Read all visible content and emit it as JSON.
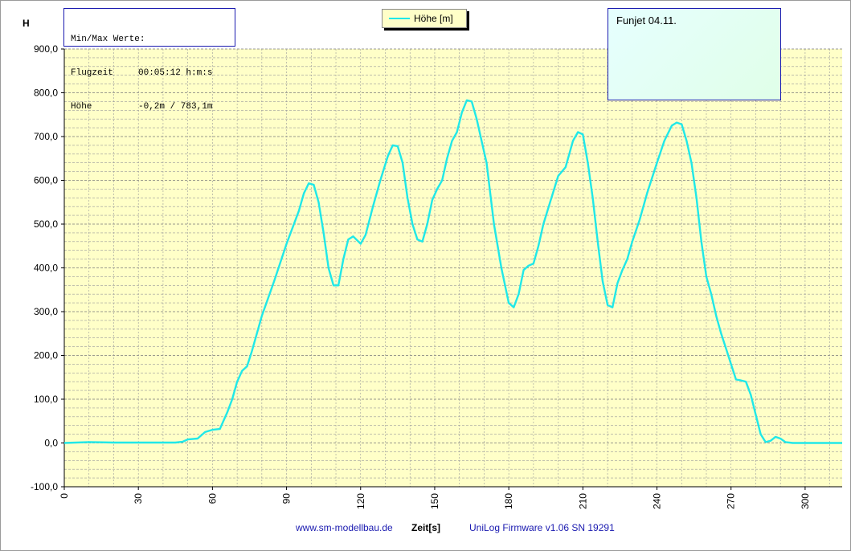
{
  "chart_data": {
    "type": "line",
    "title": "",
    "xlabel": "Zeit[s]",
    "ylabel": "H",
    "xlim": [
      0,
      315
    ],
    "ylim": [
      -100,
      900
    ],
    "x_ticks": [
      0,
      30,
      60,
      90,
      120,
      150,
      180,
      210,
      240,
      270,
      300
    ],
    "y_ticks": [
      -100,
      0,
      100,
      200,
      300,
      400,
      500,
      600,
      700,
      800,
      900
    ],
    "y_tick_labels": [
      "-100,0",
      "0,0",
      "100,0",
      "200,0",
      "300,0",
      "400,0",
      "500,0",
      "600,0",
      "700,0",
      "800,0",
      "900,0"
    ],
    "grid": true,
    "legend_position": "top-center",
    "series": [
      {
        "name": "Höhe [m]",
        "color": "#20e8e8",
        "x": [
          0,
          10,
          20,
          30,
          40,
          45,
          48,
          50,
          54,
          57,
          60,
          63,
          66,
          68,
          70,
          72,
          74,
          76,
          80,
          85,
          90,
          95,
          97,
          99,
          101,
          103,
          105,
          107,
          109,
          111,
          113,
          115,
          117,
          120,
          122,
          125,
          128,
          131,
          133,
          135,
          137,
          139,
          141,
          143,
          145,
          147,
          149,
          151,
          153,
          155,
          157,
          159,
          161,
          163,
          165,
          167,
          169,
          171,
          174,
          177,
          180,
          182,
          184,
          186,
          188,
          190,
          192,
          194,
          197,
          200,
          203,
          206,
          208,
          210,
          212,
          214,
          216,
          218,
          220,
          222,
          224,
          226,
          228,
          230,
          233,
          236,
          240,
          243,
          246,
          248,
          250,
          252,
          254,
          256,
          258,
          260,
          262,
          264,
          266,
          268,
          270,
          272,
          274,
          276,
          278,
          280,
          282,
          284,
          286,
          288,
          290,
          292,
          295,
          300,
          310,
          315
        ],
        "y": [
          0,
          2,
          1,
          1,
          1,
          1,
          3,
          8,
          10,
          25,
          30,
          32,
          70,
          100,
          140,
          165,
          175,
          210,
          290,
          370,
          455,
          530,
          570,
          593,
          590,
          550,
          480,
          400,
          360,
          360,
          420,
          465,
          472,
          455,
          475,
          540,
          600,
          655,
          680,
          678,
          640,
          560,
          500,
          465,
          460,
          500,
          555,
          580,
          600,
          650,
          690,
          710,
          755,
          783,
          780,
          740,
          690,
          640,
          500,
          400,
          320,
          310,
          340,
          395,
          405,
          410,
          450,
          500,
          555,
          610,
          630,
          690,
          710,
          705,
          640,
          560,
          460,
          370,
          315,
          310,
          365,
          395,
          420,
          460,
          510,
          570,
          640,
          690,
          725,
          732,
          728,
          690,
          640,
          560,
          460,
          380,
          340,
          290,
          250,
          215,
          180,
          145,
          143,
          140,
          110,
          65,
          20,
          2,
          5,
          14,
          10,
          2,
          0,
          0,
          0,
          0
        ]
      }
    ]
  },
  "minmax": {
    "title": "Min/Max Werte:",
    "row1_label": "Flugzeit",
    "row1_value": "00:05:12 h:m:s",
    "row2_label": "Höhe",
    "row2_value": "-0,2m / 783,1m"
  },
  "note": "Funjet 04.11.",
  "footer": {
    "link": "www.sm-modellbau.de",
    "firmware": "UniLog Firmware v1.06 SN 19291"
  },
  "colors": {
    "plot_bg": "#ffffc8",
    "grid": "#9a9a9a",
    "line": "#20e8e8"
  }
}
